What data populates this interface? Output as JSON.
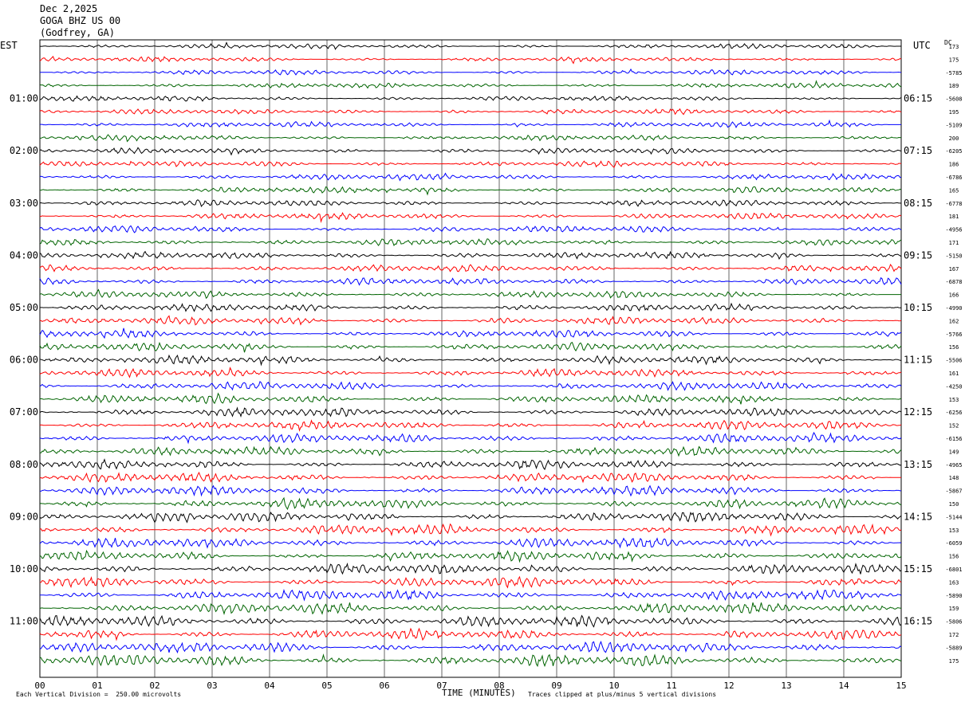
{
  "header": {
    "date": "Dec 2,2025",
    "station": "GOGA BHZ US 00",
    "location": "(Godfrey, GA)"
  },
  "left_tz": "EST",
  "right_tz": "UTC",
  "dc_label": "DC",
  "footer": {
    "scale_note": "Each Vertical Division =  250.00 microvolts",
    "clip_note": "Traces clipped at plus/minus 5 vertical divisions"
  },
  "chart_data": {
    "type": "line",
    "title": "",
    "xlabel": "TIME (MINUTES)",
    "xlim": [
      0,
      15
    ],
    "x_ticks": [
      "00",
      "01",
      "02",
      "03",
      "04",
      "05",
      "06",
      "07",
      "08",
      "09",
      "10",
      "11",
      "12",
      "13",
      "14",
      "15"
    ],
    "left_hour_labels": [
      "01:00",
      "02:00",
      "03:00",
      "04:00",
      "05:00",
      "06:00",
      "07:00",
      "08:00",
      "09:00",
      "10:00",
      "11:00"
    ],
    "right_hour_labels": [
      "06:15",
      "07:15",
      "08:15",
      "09:15",
      "10:15",
      "11:15",
      "12:15",
      "13:15",
      "14:15",
      "15:15",
      "16:15"
    ],
    "trace_colors": [
      "#000000",
      "#ff0000",
      "#0000ff",
      "#006400"
    ],
    "dc_offsets": [
      "173",
      "175",
      "-5785",
      "189",
      "-5608",
      "195",
      "-5109",
      "200",
      "-6205",
      "186",
      "-6786",
      "165",
      "-6778",
      "181",
      "-4956",
      "171",
      "-5150",
      "167",
      "-6878",
      "166",
      "-4990",
      "162",
      "-5766",
      "156",
      "-5506",
      "161",
      "-4250",
      "153",
      "-6256",
      "152",
      "-6156",
      "149",
      "-4965",
      "148",
      "-5867",
      "150",
      "-5144",
      "153",
      "-6059",
      "156",
      "-6801",
      "163",
      "-5890",
      "159",
      "-5806",
      "172",
      "-5889",
      "175"
    ],
    "grid": true,
    "trace_minutes": 15,
    "num_traces": 48
  }
}
